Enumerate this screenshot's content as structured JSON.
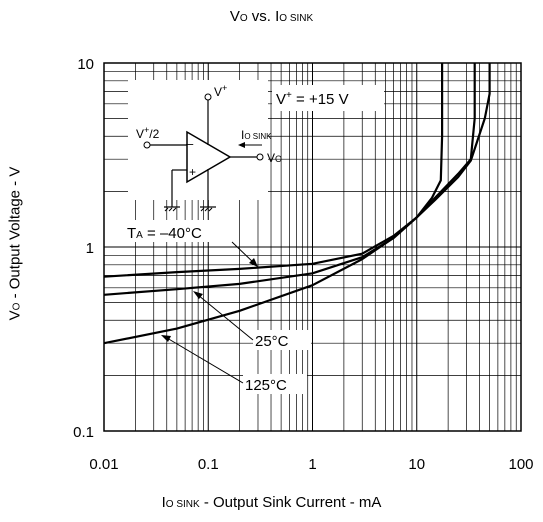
{
  "chart_data": {
    "type": "line",
    "title": {
      "main": "V",
      "sub1": "O",
      "mid": " vs. I",
      "sub2": "O SINK"
    },
    "xlabel": {
      "main": "I",
      "sub": "O SINK",
      "rest": " - Output Sink Current - mA"
    },
    "ylabel": {
      "main": "V",
      "sub": "O",
      "rest": " - Output Voltage - V"
    },
    "x_scale": "log",
    "y_scale": "log",
    "xlim": [
      0.01,
      100
    ],
    "ylim": [
      0.1,
      10
    ],
    "x_ticks": [
      "0.01",
      "0.1",
      "1",
      "10",
      "100"
    ],
    "y_ticks": [
      "0.1",
      "1",
      "10"
    ],
    "grid": true,
    "series": [
      {
        "name": "TA = -40°C",
        "label": "T",
        "label_sub": "A",
        "label_rest": " = –40°C",
        "points": [
          [
            0.01,
            0.69
          ],
          [
            0.05,
            0.73
          ],
          [
            0.2,
            0.76
          ],
          [
            1,
            0.81
          ],
          [
            3,
            0.92
          ],
          [
            6,
            1.15
          ],
          [
            10,
            1.45
          ],
          [
            14,
            1.85
          ],
          [
            17,
            2.3
          ],
          [
            17.5,
            4
          ],
          [
            17.5,
            10
          ]
        ]
      },
      {
        "name": "25°C",
        "label": "25°C",
        "points": [
          [
            0.01,
            0.55
          ],
          [
            0.05,
            0.59
          ],
          [
            0.2,
            0.63
          ],
          [
            1,
            0.72
          ],
          [
            3,
            0.88
          ],
          [
            6,
            1.12
          ],
          [
            10,
            1.45
          ],
          [
            15,
            1.85
          ],
          [
            25,
            2.5
          ],
          [
            33,
            3.0
          ],
          [
            36,
            5
          ],
          [
            36,
            10
          ]
        ]
      },
      {
        "name": "125°C",
        "label": "125°C",
        "points": [
          [
            0.01,
            0.3
          ],
          [
            0.05,
            0.36
          ],
          [
            0.2,
            0.45
          ],
          [
            1,
            0.62
          ],
          [
            3,
            0.86
          ],
          [
            6,
            1.12
          ],
          [
            10,
            1.45
          ],
          [
            15,
            1.8
          ],
          [
            25,
            2.4
          ],
          [
            33,
            2.95
          ],
          [
            45,
            5
          ],
          [
            50,
            6.8
          ],
          [
            50,
            10
          ]
        ]
      }
    ],
    "annotations": {
      "supply": "V",
      "supply_sup": "+",
      "supply_rest": " = +15 V"
    }
  },
  "schematic": {
    "vplus": "V",
    "vplus_sup": "+",
    "vhalf": "V",
    "vhalf_sup": "+",
    "vhalf_rest": "/2",
    "iosink": "I",
    "iosink_sub": "O SINK",
    "vo": "V",
    "vo_sub": "O",
    "minus": "–",
    "plus": "+"
  }
}
